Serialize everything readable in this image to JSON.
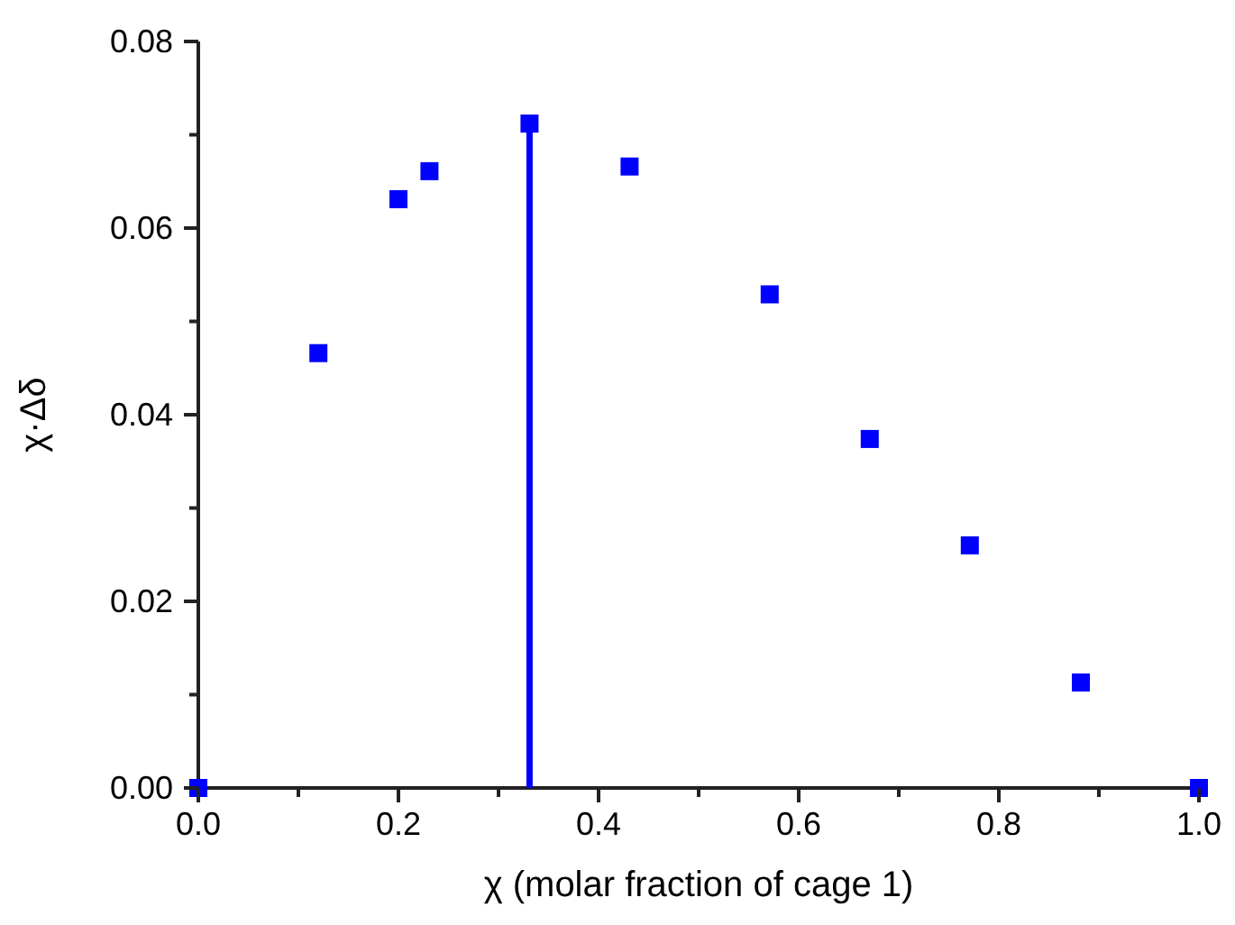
{
  "chart_data": {
    "type": "scatter",
    "xlabel": "χ (molar fraction of cage 1)",
    "ylabel": "χ·Δδ",
    "marker": "square",
    "series": [
      {
        "color": "#0000ff",
        "x": [
          0,
          0.12,
          0.2,
          0.231,
          0.331,
          0.431,
          0.571,
          0.671,
          0.771,
          0.882,
          1.0
        ],
        "values": [
          0,
          0.0466,
          0.0631,
          0.0661,
          0.0712,
          0.0666,
          0.0529,
          0.0374,
          0.026,
          0.0113,
          0
        ]
      },
      {
        "type": "line",
        "color": "#0000ff",
        "marker": "none",
        "x": [
          0.331,
          0.331
        ],
        "values": [
          0,
          0.0712
        ]
      }
    ],
    "xlim": [
      0,
      1.0
    ],
    "xticks": [
      {
        "value": 0,
        "label": "0.0"
      },
      {
        "value": 0.1,
        "label": null
      },
      {
        "value": 0.2,
        "label": "0.2"
      },
      {
        "value": 0.3,
        "label": null
      },
      {
        "value": 0.4,
        "label": "0.4"
      },
      {
        "value": 0.5,
        "label": null
      },
      {
        "value": 0.6,
        "label": "0.6"
      },
      {
        "value": 0.7,
        "label": null
      },
      {
        "value": 0.8,
        "label": "0.8"
      },
      {
        "value": 0.9,
        "label": null
      },
      {
        "value": 1.0,
        "label": "1.0"
      }
    ],
    "ylim": [
      0,
      0.08
    ],
    "yticks": [
      {
        "value": 0,
        "label": "0.00"
      },
      {
        "value": 0.01,
        "label": null
      },
      {
        "value": 0.02,
        "label": "0.02"
      },
      {
        "value": 0.03,
        "label": null
      },
      {
        "value": 0.04,
        "label": "0.04"
      },
      {
        "value": 0.05,
        "label": null
      },
      {
        "value": 0.06,
        "label": "0.06"
      },
      {
        "value": 0.07,
        "label": null
      },
      {
        "value": 0.08,
        "label": "0.08"
      }
    ]
  }
}
